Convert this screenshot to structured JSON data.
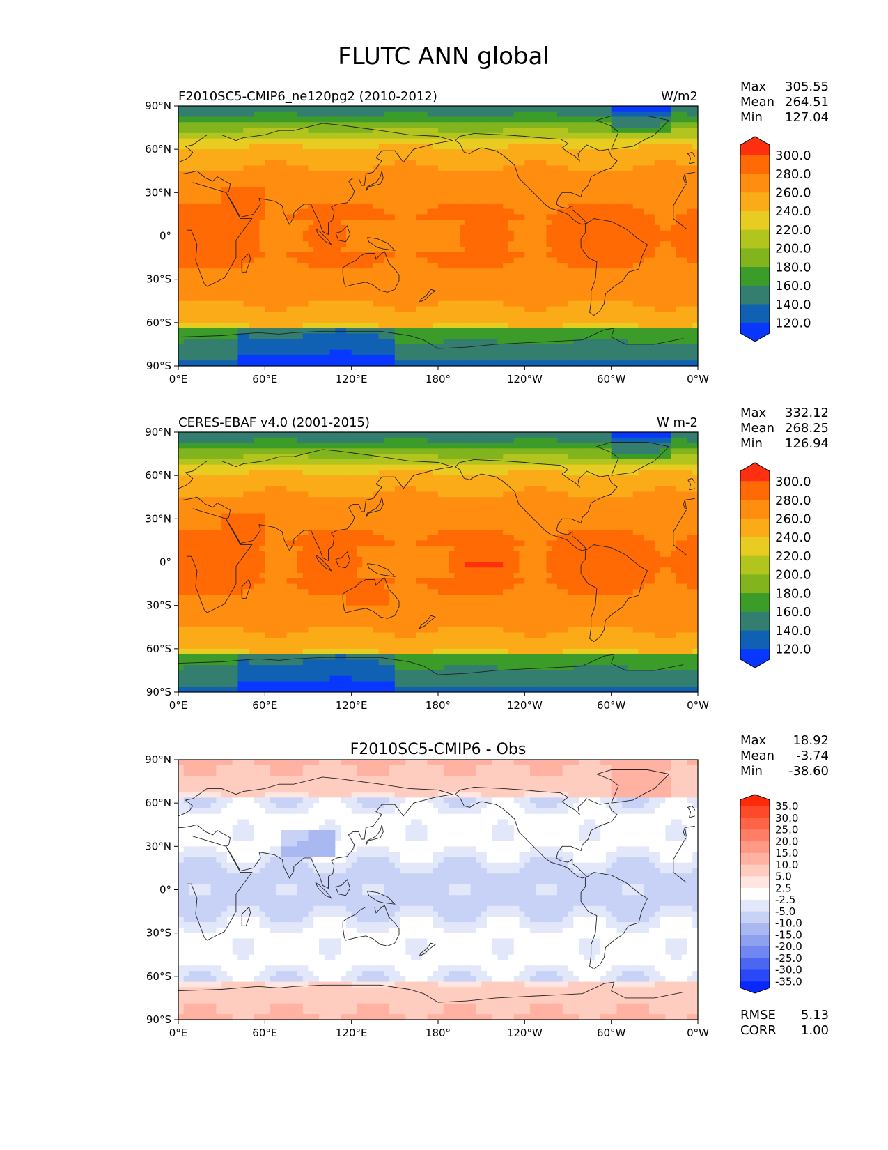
{
  "title": "FLUTC ANN global",
  "x_ticks": [
    "0°E",
    "60°E",
    "120°E",
    "180°",
    "120°W",
    "60°W",
    "0°W"
  ],
  "y_ticks": [
    "90°N",
    "60°N",
    "30°N",
    "0°",
    "30°S",
    "60°S",
    "90°S"
  ],
  "panels": [
    {
      "title_left": "F2010SC5-CMIP6_ne120pg2 (2010-2012)",
      "title_center": "",
      "units": "W/m2",
      "stats": {
        "labels": [
          "Max",
          "Mean",
          "Min"
        ],
        "values": [
          "305.55",
          "264.51",
          "127.04"
        ]
      },
      "colorbar": {
        "labels": [
          "300.0",
          "280.0",
          "260.0",
          "240.0",
          "220.0",
          "200.0",
          "180.0",
          "160.0",
          "140.0",
          "120.0"
        ],
        "colors": [
          "#ff3010",
          "#ff6a05",
          "#ff8e10",
          "#fbaa18",
          "#e8cc22",
          "#b2c41e",
          "#82b41e",
          "#3c9c2a",
          "#347e70",
          "#1060b4",
          "#0838ff"
        ]
      }
    },
    {
      "title_left": "CERES-EBAF v4.0 (2001-2015)",
      "title_center": "",
      "units": "W m-2",
      "stats": {
        "labels": [
          "Max",
          "Mean",
          "Min"
        ],
        "values": [
          "332.12",
          "268.25",
          "126.94"
        ]
      },
      "colorbar": {
        "labels": [
          "300.0",
          "280.0",
          "260.0",
          "240.0",
          "220.0",
          "200.0",
          "180.0",
          "160.0",
          "140.0",
          "120.0"
        ],
        "colors": [
          "#ff3010",
          "#ff6a05",
          "#ff8e10",
          "#fbaa18",
          "#e8cc22",
          "#b2c41e",
          "#82b41e",
          "#3c9c2a",
          "#347e70",
          "#1060b4",
          "#0838ff"
        ]
      }
    },
    {
      "title_left": "",
      "title_center": "F2010SC5-CMIP6 - Obs",
      "units": "",
      "stats": {
        "labels": [
          "Max",
          "Mean",
          "Min"
        ],
        "values": [
          "18.92",
          "-3.74",
          "-38.60"
        ]
      },
      "colorbar": {
        "labels": [
          "35.0",
          "30.0",
          "25.0",
          "20.0",
          "15.0",
          "10.0",
          "5.0",
          "2.5",
          "-2.5",
          "-5.0",
          "-10.0",
          "-15.0",
          "-20.0",
          "-25.0",
          "-30.0",
          "-35.0"
        ],
        "colors": [
          "#ff2a08",
          "#ff4a2a",
          "#ff6448",
          "#ff7e66",
          "#ff9884",
          "#ffb2a2",
          "#ffccc0",
          "#ffe6e0",
          "#ffffff",
          "#e2e8fa",
          "#c8d2f6",
          "#aab8f2",
          "#8ea0f0",
          "#7086f0",
          "#4c66f4",
          "#2a48f8",
          "#0828ff"
        ]
      },
      "rmse_corr": {
        "labels": [
          "RMSE",
          "CORR"
        ],
        "values": [
          "5.13",
          "1.00"
        ]
      }
    }
  ]
}
